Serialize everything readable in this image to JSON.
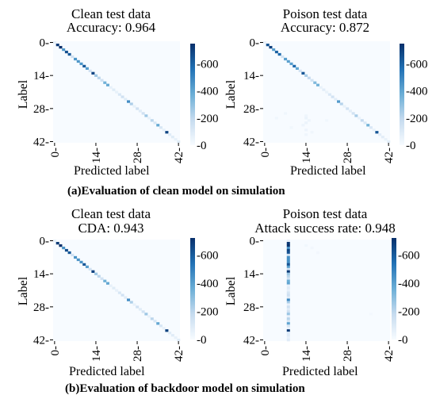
{
  "colors": {
    "cmap_low": "#f7fbff",
    "cmap_mid": "#6baed6",
    "cmap_high": "#08306b"
  },
  "captions": {
    "a": "(a)Evaluation of clean model on simulation",
    "b": "(b)Evaluation of backdoor model on simulation"
  },
  "chart_data": [
    {
      "type": "heatmap",
      "title": "Clean test data",
      "subtitle": "Accuracy: 0.964",
      "xlabel": "Predicted label",
      "ylabel": "Label",
      "n_classes": 43,
      "x_ticks": [
        "0",
        "14",
        "28",
        "42"
      ],
      "y_ticks": [
        "0",
        "14",
        "28",
        "42"
      ],
      "colorbar_ticks": [
        "600",
        "400",
        "200",
        "0"
      ],
      "colorbar_range": [
        0,
        750
      ],
      "diagonal_values": [
        60,
        720,
        750,
        450,
        660,
        630,
        150,
        450,
        450,
        450,
        630,
        420,
        150,
        690,
        270,
        210,
        150,
        360,
        390,
        60,
        90,
        60,
        120,
        150,
        90,
        480,
        240,
        60,
        150,
        90,
        150,
        270,
        60,
        210,
        120,
        390,
        120,
        60,
        690,
        90,
        90,
        60,
        90
      ],
      "off_diagonal": []
    },
    {
      "type": "heatmap",
      "title": "Poison test data",
      "subtitle": "Accuracy: 0.872",
      "xlabel": "Predicted label",
      "ylabel": "Label",
      "n_classes": 43,
      "x_ticks": [
        "0",
        "14",
        "28",
        "42"
      ],
      "y_ticks": [
        "0",
        "14",
        "28",
        "42"
      ],
      "colorbar_ticks": [
        "600",
        "400",
        "200",
        "0"
      ],
      "colorbar_range": [
        0,
        750
      ],
      "diagonal_values": [
        50,
        650,
        700,
        420,
        610,
        580,
        140,
        420,
        420,
        420,
        580,
        390,
        140,
        640,
        250,
        190,
        140,
        330,
        360,
        55,
        80,
        55,
        110,
        140,
        80,
        440,
        220,
        55,
        140,
        80,
        140,
        250,
        55,
        190,
        110,
        360,
        110,
        55,
        640,
        80,
        80,
        55,
        80
      ],
      "off_diagonal": [
        {
          "row": 30,
          "col": 7,
          "value": 30
        },
        {
          "row": 31,
          "col": 14,
          "value": 35
        },
        {
          "row": 32,
          "col": 4,
          "value": 25
        },
        {
          "row": 32,
          "col": 14,
          "value": 45
        },
        {
          "row": 33,
          "col": 15,
          "value": 40
        },
        {
          "row": 33,
          "col": 21,
          "value": 25
        },
        {
          "row": 34,
          "col": 14,
          "value": 45
        },
        {
          "row": 35,
          "col": 13,
          "value": 40
        },
        {
          "row": 36,
          "col": 9,
          "value": 25
        },
        {
          "row": 37,
          "col": 14,
          "value": 40
        },
        {
          "row": 38,
          "col": 16,
          "value": 30
        },
        {
          "row": 39,
          "col": 14,
          "value": 35
        }
      ]
    },
    {
      "type": "heatmap",
      "title": "Clean test data",
      "subtitle": "CDA: 0.943",
      "xlabel": "Predicted label",
      "ylabel": "Label",
      "n_classes": 43,
      "x_ticks": [
        "0",
        "14",
        "28",
        "42"
      ],
      "y_ticks": [
        "0",
        "14",
        "28",
        "42"
      ],
      "colorbar_ticks": [
        "600",
        "400",
        "200",
        "0"
      ],
      "colorbar_range": [
        0,
        720
      ],
      "diagonal_values": [
        55,
        690,
        720,
        440,
        640,
        610,
        140,
        440,
        440,
        440,
        610,
        400,
        140,
        670,
        260,
        200,
        140,
        350,
        380,
        55,
        85,
        55,
        115,
        140,
        85,
        460,
        230,
        55,
        140,
        85,
        140,
        260,
        55,
        200,
        115,
        380,
        115,
        55,
        670,
        85,
        85,
        55,
        85
      ],
      "off_diagonal": []
    },
    {
      "type": "heatmap",
      "title": "Poison test data",
      "subtitle": "Attack success rate: 0.948",
      "xlabel": "Predicted label",
      "ylabel": "Label",
      "n_classes": 43,
      "x_ticks": [
        "0",
        "14",
        "28",
        "42"
      ],
      "y_ticks": [
        "0",
        "14",
        "28",
        "42"
      ],
      "colorbar_ticks": [
        "600",
        "400",
        "200",
        "0"
      ],
      "colorbar_range": [
        0,
        720
      ],
      "target_column": 8,
      "column_values": [
        60,
        700,
        720,
        450,
        660,
        630,
        150,
        450,
        450,
        450,
        630,
        410,
        150,
        690,
        270,
        210,
        150,
        360,
        390,
        60,
        90,
        60,
        120,
        150,
        90,
        470,
        240,
        60,
        150,
        90,
        150,
        270,
        60,
        210,
        120,
        390,
        120,
        60,
        690,
        90,
        90,
        60,
        90
      ],
      "off_diagonal": [
        {
          "row": 2,
          "col": 14,
          "value": 25
        },
        {
          "row": 3,
          "col": 16,
          "value": 20
        },
        {
          "row": 5,
          "col": 18,
          "value": 20
        },
        {
          "row": 31,
          "col": 36,
          "value": 15
        }
      ]
    }
  ]
}
